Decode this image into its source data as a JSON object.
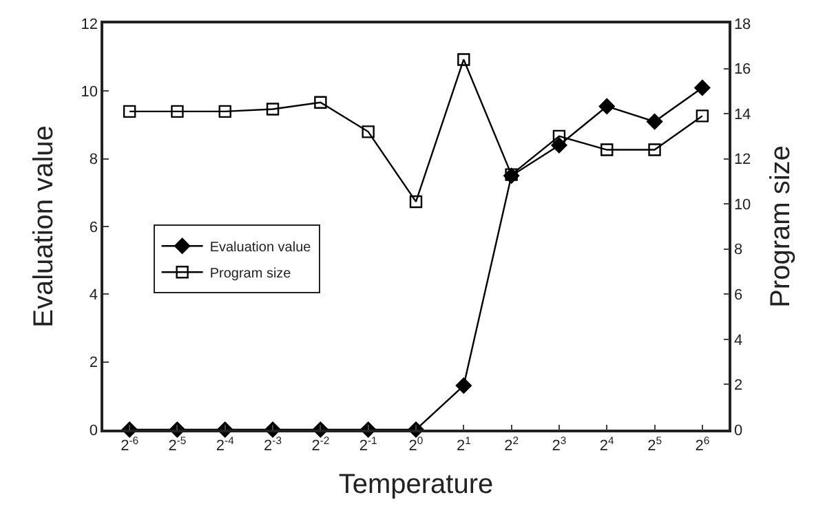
{
  "chart_data": {
    "type": "line",
    "xlabel": "Temperature",
    "ylabel": "Evaluation value",
    "y2label": "Program size",
    "categories": [
      "2$^{-6}$",
      "2$^{-5}$",
      "2$^{-4}$",
      "2$^{-3}$",
      "2$^{-2}$",
      "2$^{-1}$",
      "2$^{0}$",
      "2$^{1}$",
      "2$^{2}$",
      "2$^{3}$",
      "2$^{4}$",
      "2$^{5}$",
      "2$^{6}$"
    ],
    "series": [
      {
        "name": "Evaluation value",
        "color": "#000000",
        "marker": "diamond",
        "values": [
          0,
          0,
          0,
          0,
          0,
          0,
          0,
          1.3,
          7.5,
          8.4,
          9.55,
          9.1,
          10.1
        ]
      },
      {
        "name": "Program size",
        "color": "#000000",
        "marker": "square",
        "axis": "y2",
        "values": [
          14.1,
          14.1,
          14.1,
          14.2,
          14.5,
          13.2,
          10.1,
          16.4,
          11.3,
          13.0,
          12.4,
          12.4,
          13.9
        ]
      }
    ],
    "ylim": [
      0,
      12
    ],
    "yticks": [
      0,
      2,
      4,
      6,
      8,
      10,
      12
    ],
    "y2lim": [
      0,
      18
    ],
    "y2ticks": [
      0,
      2,
      4,
      6,
      8,
      10,
      12,
      14,
      16,
      18
    ],
    "legend": "middle left",
    "line_style": "solid"
  }
}
